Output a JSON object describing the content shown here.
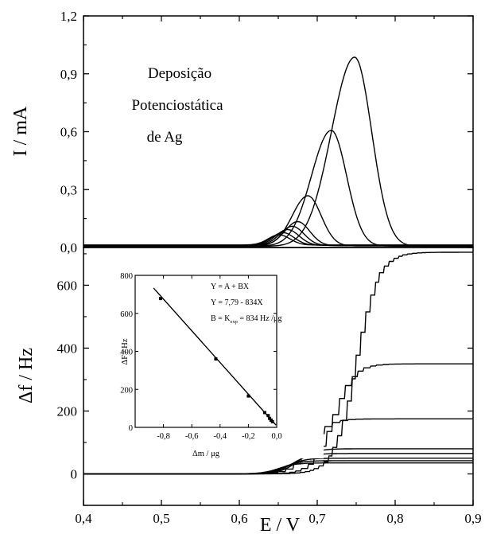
{
  "chart_data": [
    {
      "type": "line",
      "panel": "top",
      "ylabel": "I / mA",
      "xlabel": "",
      "xlim": [
        0.4,
        0.9
      ],
      "ylim": [
        0,
        1.2
      ],
      "xticks": [
        "0,4",
        "0,5",
        "0,6",
        "0,7",
        "0,8",
        "0,9"
      ],
      "yticks": [
        "0,0",
        "0,3",
        "0,6",
        "0,9",
        "1,2"
      ],
      "annotation": [
        "Deposição",
        "Potenciostática",
        "de Ag"
      ],
      "grid": false,
      "series": [
        {
          "peak_E": 0.748,
          "peak_I": 0.98
        },
        {
          "peak_E": 0.718,
          "peak_I": 0.6
        },
        {
          "peak_E": 0.688,
          "peak_I": 0.26
        },
        {
          "peak_E": 0.675,
          "peak_I": 0.125
        },
        {
          "peak_E": 0.668,
          "peak_I": 0.1
        },
        {
          "peak_E": 0.662,
          "peak_I": 0.082
        },
        {
          "peak_E": 0.656,
          "peak_I": 0.065
        },
        {
          "peak_E": 0.651,
          "peak_I": 0.053
        }
      ]
    },
    {
      "type": "line",
      "panel": "bottom",
      "xlabel": "E / V",
      "ylabel": "Δf / Hz",
      "xlim": [
        0.4,
        0.9
      ],
      "ylim": [
        -100,
        720
      ],
      "xticks": [
        "0,4",
        "0,5",
        "0,6",
        "0,7",
        "0,8",
        "0,9"
      ],
      "yticks": [
        "0",
        "200",
        "400",
        "600"
      ],
      "grid": false,
      "series": [
        {
          "final_df": 705
        },
        {
          "final_df": 350
        },
        {
          "final_df": 175
        },
        {
          "final_df": 80
        },
        {
          "final_df": 65
        },
        {
          "final_df": 50
        },
        {
          "final_df": 42
        },
        {
          "final_df": 35
        }
      ]
    },
    {
      "type": "scatter",
      "panel": "inset",
      "xlabel": "Δm / μg",
      "ylabel": "ΔF / Hz",
      "xlim": [
        -1.0,
        0.0
      ],
      "ylim": [
        0,
        800
      ],
      "xticks": [
        "-0,8",
        "-0,6",
        "-0,4",
        "-0,2",
        "0,0"
      ],
      "yticks": [
        "0",
        "200",
        "400",
        "600",
        "800"
      ],
      "x": [
        -0.82,
        -0.43,
        -0.2,
        -0.085,
        -0.06,
        -0.05,
        -0.04,
        -0.03
      ],
      "y": [
        678,
        360,
        165,
        78,
        62,
        47,
        38,
        30
      ],
      "fit": {
        "A": 7.79,
        "B": -834
      },
      "equations": [
        "Y = A + BX",
        "Y = 7,79 - 834X"
      ],
      "eq3_prefix": "B = K",
      "eq3_sub": "exp",
      "eq3_suffix": " = 834 Hz /μg"
    }
  ]
}
